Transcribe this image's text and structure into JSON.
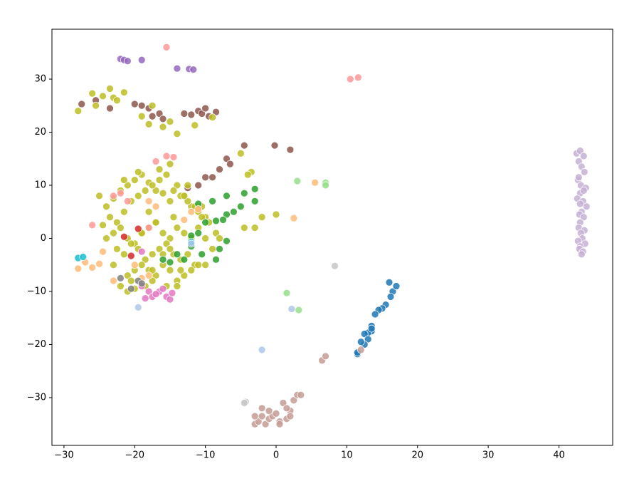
{
  "chart_data": {
    "type": "scatter",
    "xlim": [
      -31.7,
      47.6
    ],
    "ylim": [
      -39.0,
      39.4
    ],
    "xticks": [
      {
        "value": -30,
        "label": "−30"
      },
      {
        "value": -20,
        "label": "−20"
      },
      {
        "value": -10,
        "label": "−10"
      },
      0,
      10,
      20,
      30,
      40
    ],
    "yticks": [
      {
        "value": -30,
        "label": "−30"
      },
      {
        "value": -20,
        "label": "−20"
      },
      {
        "value": -10,
        "label": "−10"
      },
      0,
      10,
      20,
      30
    ],
    "series": [
      {
        "color": "#9467bd",
        "x": [
          -22,
          -21.5,
          -21,
          -19,
          -14,
          -12.3,
          -11.7
        ],
        "y": [
          33.8,
          33.6,
          33.4,
          33.6,
          32,
          31.9,
          31.8
        ]
      },
      {
        "color": "#8c564b",
        "x": [
          -27.5,
          -25.5,
          -23.5,
          -20,
          -19,
          -18,
          -17.5,
          -16.5,
          -16,
          -13,
          -12,
          -11,
          -10.5,
          -10,
          -9.5,
          -8.5,
          -4.5,
          -0.2,
          2,
          -7,
          -6.5,
          -8,
          -9,
          -10,
          -11,
          -12.5
        ],
        "y": [
          25.3,
          26,
          24.5,
          25.3,
          25,
          24.5,
          23,
          23.5,
          22.5,
          23.5,
          23.3,
          24,
          23.5,
          24.5,
          23,
          23.8,
          17.5,
          17.5,
          16.7,
          15,
          14,
          13,
          11.5,
          11.5,
          10,
          9.5
        ]
      },
      {
        "color": "#bcbd22",
        "x": [
          -28,
          -26,
          -25.5,
          -24.5,
          -23.5,
          -23,
          -22.5,
          -21.5,
          -19,
          -18,
          -17.5,
          -16,
          -15,
          -14,
          -11.5,
          -9,
          -5,
          -3.5,
          -4,
          -2,
          0,
          -3,
          -4.5,
          -25,
          -24,
          -23,
          -22,
          -21,
          -20,
          -19,
          -18,
          -17,
          -16,
          -15,
          -14,
          -13,
          -12,
          -11,
          -10,
          -24.5,
          -23.5,
          -22.5,
          -21.5,
          -20.5,
          -19.5,
          -18.5,
          -17.5,
          -16.5,
          -15.5,
          -14.5,
          -13.5,
          -12.5,
          -11.5,
          -10.5,
          -9.5,
          -24,
          -23,
          -22,
          -21,
          -20,
          -19,
          -18,
          -17,
          -16,
          -15,
          -14,
          -13,
          -12,
          -11,
          -10,
          -8.5,
          -22.5,
          -21.5,
          -20.5,
          -19.5,
          -18.5,
          -17.5,
          -16.5,
          -15.5,
          -14.5,
          -13.5,
          -12.5,
          -11.5,
          -9,
          -8,
          -23,
          -21,
          -20,
          -19,
          -18,
          -17,
          -16,
          -15,
          -14,
          -13,
          -12,
          -10,
          -22,
          -20.5,
          -18.5,
          -17.5,
          -15.5,
          -14,
          -13.5,
          -11,
          -21,
          -19.5,
          -16.5,
          -15,
          -12.5,
          -10.5,
          -20,
          -18,
          -17,
          -14.5,
          -21.5,
          -19,
          -16,
          -13,
          -17.5,
          -15
        ],
        "y": [
          24,
          27.3,
          25,
          26.8,
          28.2,
          26.5,
          26,
          27.5,
          23,
          21.5,
          25,
          21,
          22,
          19.7,
          21.3,
          22.8,
          16,
          12.5,
          12,
          4,
          4.5,
          2,
          2,
          8,
          6,
          7.5,
          9,
          10,
          11,
          12,
          10.5,
          9,
          8.5,
          7,
          10,
          8,
          6,
          5,
          4,
          2.5,
          4,
          3,
          5,
          7,
          8,
          9,
          10,
          11,
          12,
          9,
          8,
          7,
          6,
          4,
          3,
          0,
          1,
          2,
          0,
          -1,
          1,
          2,
          3,
          1,
          0,
          2,
          1,
          0,
          2,
          0,
          1,
          -2,
          -3,
          -1,
          -2,
          -4,
          -3,
          -2,
          -1,
          -3,
          -4,
          -3,
          -5,
          -2,
          0,
          -5,
          -7,
          -6,
          -5,
          -6,
          -7,
          -5,
          -6,
          -8,
          -7,
          -6,
          -5,
          -9,
          -8,
          -9,
          -8,
          -9,
          -9,
          -6,
          -5,
          -10,
          12.5,
          13,
          14,
          10,
          6,
          -9.5,
          5,
          3,
          4,
          11,
          1,
          -3,
          8,
          -6,
          -2
        ]
      },
      {
        "color": "#2ca02c",
        "x": [
          -3,
          -3,
          -4.5,
          -5,
          -6,
          -7,
          -7.5,
          -8.5,
          -10,
          -11,
          -12,
          -12,
          -13,
          -14,
          -15,
          -16,
          -10.5,
          -8,
          -7,
          -8.5,
          -11,
          -9,
          -7
        ],
        "y": [
          9.3,
          7,
          8.5,
          6,
          5,
          4.5,
          3.5,
          3.3,
          3,
          1,
          0.5,
          -1.5,
          -4,
          -3,
          -4.5,
          -4,
          -3,
          -2,
          -0.5,
          -4,
          6.5,
          7,
          8
        ]
      },
      {
        "color": "#ff9896",
        "x": [
          -15.5,
          10.5,
          11.6,
          -15.5,
          -14.5,
          -17,
          -26,
          -23,
          -22,
          -21,
          -18
        ],
        "y": [
          36,
          30,
          30.3,
          15.5,
          15.3,
          14.5,
          2.5,
          8,
          8.5,
          7,
          2
        ]
      },
      {
        "color": "#98df8a",
        "x": [
          3,
          7,
          7,
          1.5,
          3.2
        ],
        "y": [
          10.8,
          10.5,
          10,
          -10.3,
          -13.5
        ]
      },
      {
        "color": "#ffbb78",
        "x": [
          5.5,
          2.5,
          -28,
          -27,
          -26,
          -25,
          -24.5,
          -23,
          -11,
          -12,
          -13,
          -18,
          -17,
          -19,
          -18,
          -20
        ],
        "y": [
          10.5,
          3.8,
          -5.7,
          -4.5,
          -5.5,
          -4.8,
          -2.5,
          -8,
          5.5,
          5,
          3.5,
          7,
          6,
          -7.5,
          -7,
          -5
        ]
      },
      {
        "color": "#17becf",
        "x": [
          -28,
          -27.3,
          -12
        ],
        "y": [
          -3.7,
          -3.5,
          -0.7
        ]
      },
      {
        "color": "#d62728",
        "x": [
          -21.5,
          -20.5,
          -19.5
        ],
        "y": [
          0.3,
          -3.3,
          1.8
        ]
      },
      {
        "color": "#e377c2",
        "x": [
          -19,
          -18,
          -17.5,
          -16.5,
          -15.5,
          -15,
          -14.7,
          -16,
          -18.5,
          -17,
          -19
        ],
        "y": [
          -9,
          -10,
          -11,
          -10,
          -11,
          -11.5,
          -10.3,
          -9.5,
          -11.3,
          -10.5,
          -2.5
        ]
      },
      {
        "color": "#7f7f7f",
        "x": [
          -22,
          -20.5,
          -19.5,
          -19
        ],
        "y": [
          -7.5,
          -9.5,
          -8,
          -8.5
        ]
      },
      {
        "color": "#c7c7c7",
        "x": [
          8.3,
          -4.3,
          -4.5
        ],
        "y": [
          -5.2,
          -30.8,
          -31
        ]
      },
      {
        "color": "#aec7e8",
        "x": [
          -19.5,
          -2,
          2.2,
          -12
        ],
        "y": [
          -13,
          -21,
          -13.3,
          -1
        ]
      },
      {
        "color": "#1f77b4",
        "x": [
          16,
          16.5,
          17,
          16.2,
          15.5,
          15,
          14.5,
          14,
          13.5,
          13.5,
          13,
          12.5,
          13,
          12.5,
          12,
          11.5,
          11.5,
          13.5
        ],
        "y": [
          -8.3,
          -10,
          -9,
          -11,
          -12.5,
          -13.2,
          -13.5,
          -14.3,
          -16.5,
          -17.5,
          -17.8,
          -18,
          -19,
          -20,
          -19.5,
          -21.8,
          -21.5,
          -17
        ]
      },
      {
        "color": "#c49c94",
        "x": [
          6.5,
          7,
          12,
          -3,
          -2.5,
          -2,
          -1.5,
          -1,
          -0.5,
          0,
          0.5,
          1,
          1.5,
          2,
          2.5,
          3,
          3.5,
          -2,
          0.5,
          1.5,
          -3,
          -1,
          2
        ],
        "y": [
          -23,
          -22.2,
          -21,
          -35,
          -34.5,
          -33.5,
          -35,
          -34,
          -33.5,
          -33,
          -34.5,
          -31,
          -34,
          -32.5,
          -30.5,
          -29.5,
          -29.5,
          -32,
          -35,
          -32,
          -33.5,
          -32.5,
          -33.5
        ]
      },
      {
        "color": "#c5b0d5",
        "x": [
          42.5,
          43,
          43.5,
          42.8,
          43.2,
          43.6,
          42.7,
          43.1,
          43.8,
          43,
          42.6,
          43.4,
          43.9,
          43.2,
          42.9,
          43.5,
          43,
          42.8,
          43.6,
          43.1,
          43.3,
          42.7,
          43.7,
          43,
          42.9,
          43.4,
          43.2,
          42.8,
          43.5,
          43
        ],
        "y": [
          16,
          16.5,
          15.5,
          14.5,
          13.5,
          12.5,
          11,
          10,
          9.5,
          8.5,
          7.5,
          7,
          6,
          5,
          4.5,
          4,
          3,
          2,
          1.5,
          1,
          0,
          -0.5,
          -1,
          -1.5,
          -2,
          -2.5,
          -3,
          11.5,
          9,
          6.5
        ]
      }
    ]
  }
}
